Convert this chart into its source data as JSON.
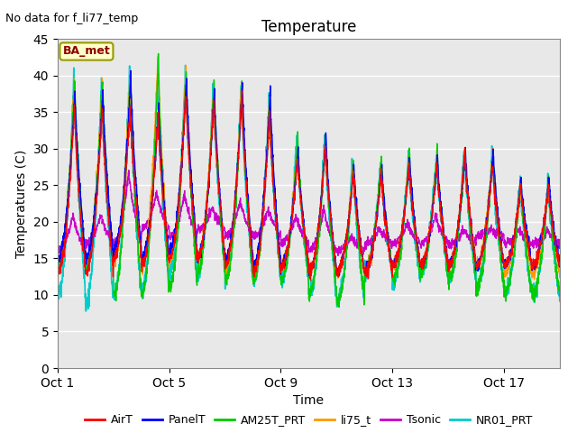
{
  "title": "Temperature",
  "xlabel": "Time",
  "ylabel": "Temperatures (C)",
  "annotation_text": "No data for f_li77_temp",
  "legend_box_text": "BA_met",
  "ylim": [
    0,
    45
  ],
  "yticks": [
    0,
    5,
    10,
    15,
    20,
    25,
    30,
    35,
    40,
    45
  ],
  "xtick_labels": [
    "Oct 1",
    "Oct 5",
    "Oct 9",
    "Oct 13",
    "Oct 17"
  ],
  "xtick_positions": [
    0,
    4,
    8,
    12,
    16
  ],
  "n_days": 18,
  "background_color": "#ffffff",
  "plot_bg_color": "#e8e8e8",
  "grid_color": "#ffffff",
  "shaded_band_low": 9.0,
  "shaded_band_high": 39.5,
  "series": {
    "AirT": {
      "color": "#ff0000",
      "lw": 1.0
    },
    "PanelT": {
      "color": "#0000ff",
      "lw": 1.0
    },
    "AM25T_PRT": {
      "color": "#00cc00",
      "lw": 1.0
    },
    "li75_t": {
      "color": "#ff9900",
      "lw": 1.0
    },
    "Tsonic": {
      "color": "#cc00cc",
      "lw": 1.0
    },
    "NR01_PRT": {
      "color": "#00cccc",
      "lw": 1.2
    }
  },
  "title_fontsize": 12,
  "axis_label_fontsize": 10,
  "tick_fontsize": 10,
  "legend_fontsize": 9,
  "figsize": [
    6.4,
    4.8
  ],
  "dpi": 100
}
